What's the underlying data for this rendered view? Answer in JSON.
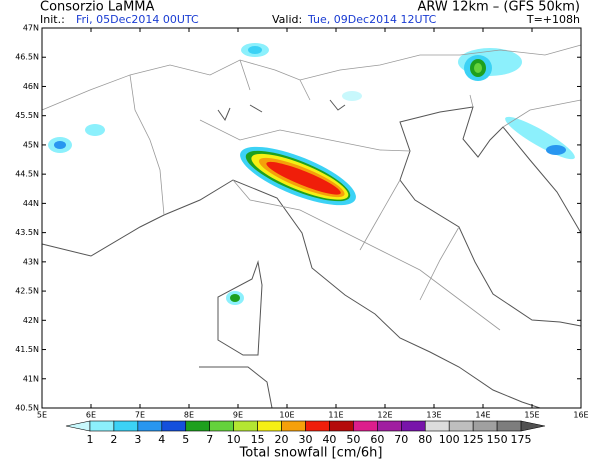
{
  "header": {
    "title": "Consorzio LaMMA",
    "model": "ARW 12km  –  (GFS 50km)",
    "init_label": "Init.:",
    "init": "Fri, 05Dec2014 00UTC",
    "valid_label": "Valid:",
    "valid": "Tue, 09Dec2014 12UTC",
    "lead": "T=+108h"
  },
  "map": {
    "lat_labels": [
      "47N",
      "46.5N",
      "46N",
      "45.5N",
      "45N",
      "44.5N",
      "44N",
      "43.5N",
      "43N",
      "42.5N",
      "42N",
      "41.5N",
      "41N",
      "40.5N"
    ],
    "lon_labels": [
      "5E",
      "6E",
      "7E",
      "8E",
      "9E",
      "10E",
      "11E",
      "12E",
      "13E",
      "14E",
      "15E",
      "16E"
    ]
  },
  "colorbar": {
    "title": "Total snowfall [cm/6h]",
    "labels": [
      "1",
      "2",
      "3",
      "4",
      "5",
      "7",
      "10",
      "15",
      "20",
      "30",
      "40",
      "50",
      "60",
      "70",
      "80",
      "100",
      "125",
      "150",
      "175"
    ],
    "colors": [
      "#c8f8fc",
      "#8cf0fc",
      "#3cd2f5",
      "#2896f0",
      "#1450dc",
      "#1ea01e",
      "#64d23c",
      "#b4e632",
      "#f5f014",
      "#f5a00a",
      "#f01e0a",
      "#b40a0a",
      "#dc1e8c",
      "#a01ea0",
      "#7814aa",
      "#dcdcdc",
      "#bebebe",
      "#a0a0a0",
      "#7d7d7d",
      "#505050"
    ]
  }
}
